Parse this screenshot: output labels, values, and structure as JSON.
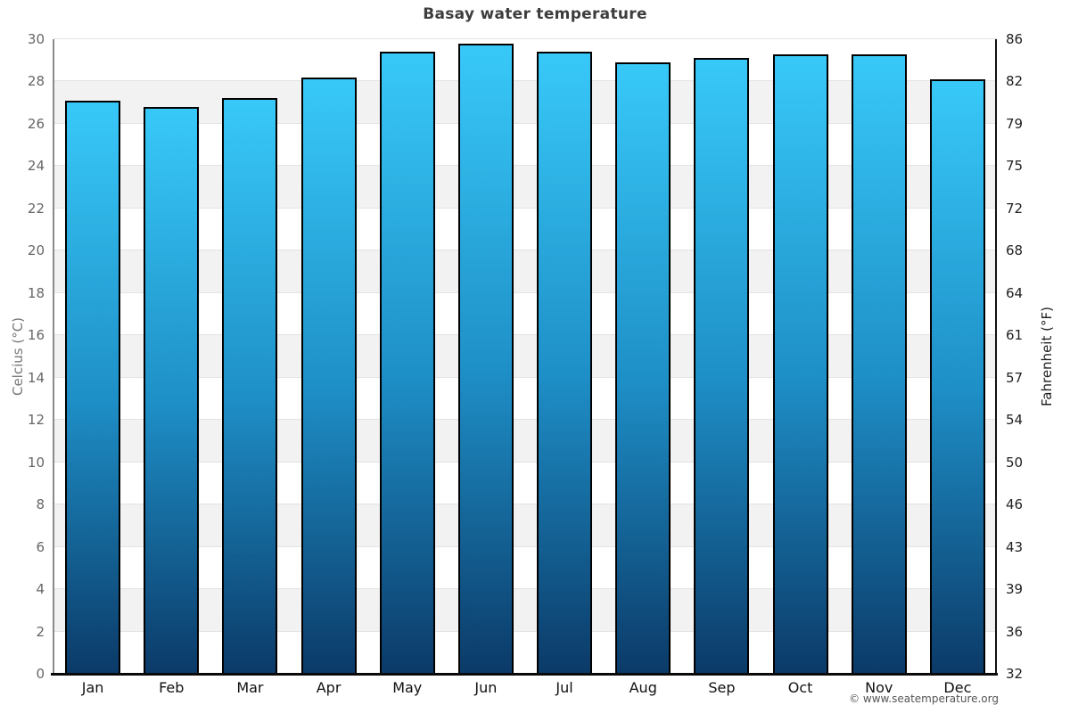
{
  "title": "Basay water temperature",
  "attribution": "© www.seatemperature.org",
  "axes": {
    "left_title": "Celcius (°C)",
    "right_title": "Fahrenheit (°F)"
  },
  "chart_data": {
    "type": "bar",
    "title": "Basay water temperature",
    "categories": [
      "Jan",
      "Feb",
      "Mar",
      "Apr",
      "May",
      "Jun",
      "Jul",
      "Aug",
      "Sep",
      "Oct",
      "Nov",
      "Dec"
    ],
    "values": [
      27.1,
      26.8,
      27.2,
      28.2,
      29.4,
      29.8,
      29.4,
      28.9,
      29.1,
      29.3,
      29.3,
      28.1
    ],
    "series_name": "Water temperature (°C)",
    "xlabel": "",
    "ylabel_left": "Celcius (°C)",
    "ylabel_right": "Fahrenheit (°F)",
    "ylim": [
      0,
      30
    ],
    "ytick_step": 2,
    "yticks_celsius": [
      0,
      2,
      4,
      6,
      8,
      10,
      12,
      14,
      16,
      18,
      20,
      22,
      24,
      26,
      28,
      30
    ],
    "yticks_fahrenheit": [
      32,
      36,
      39,
      43,
      46,
      50,
      54,
      57,
      61,
      64,
      68,
      72,
      75,
      79,
      82,
      86
    ],
    "grid": "alternating horizontal bands every 2 units, gray on ranges 2-4, 6-8, 10-12, 14-16, 18-20, 22-24, 26-28",
    "legend_position": "none"
  },
  "colors": {
    "bar_gradient_top": "#38c9f8",
    "bar_gradient_mid": "#1e8fc7",
    "bar_gradient_bottom": "#0b3a68",
    "bar_border": "#000000",
    "band_gray": "#f2f2f2",
    "gridline": "#e3e3e3",
    "axis_bottom": "#0a0a0a",
    "axis_right": "#111111",
    "axis_left_spine": "#8a8a8a",
    "title_text": "#3d3d3d",
    "left_tick_text": "#666666",
    "right_tick_text": "#222222",
    "month_text": "#111111",
    "footer_text": "#555555"
  }
}
